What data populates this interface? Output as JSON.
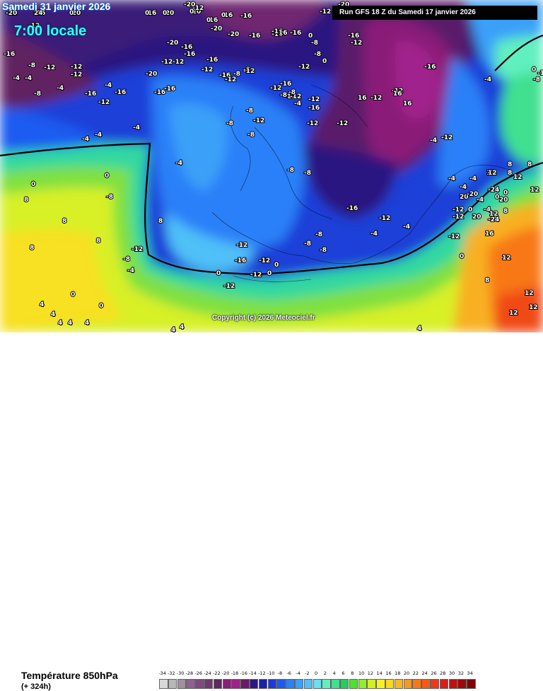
{
  "header": {
    "date": "Samedi 31 janvier 2026",
    "time": "7:00 locale",
    "run": "Run GFS 18 Z du Samedi 17 janvier 2026"
  },
  "footer": {
    "parameter": "Température 850hPa",
    "lead_time": "(+ 324h)",
    "copyright": "Copyright (c) 2026 Meteociel.fr"
  },
  "scale": {
    "labels": [
      "-34",
      "-32",
      "-30",
      "-28",
      "-26",
      "-24",
      "-22",
      "-20",
      "-18",
      "-16",
      "-14",
      "-12",
      "-10",
      "-8",
      "-6",
      "-4",
      "-2",
      "0",
      "2",
      "4",
      "6",
      "8",
      "10",
      "12",
      "14",
      "16",
      "18",
      "20",
      "22",
      "24",
      "26",
      "28",
      "30",
      "32",
      "34"
    ],
    "colors": [
      "#d8d8d8",
      "#b8b8b8",
      "#a090a0",
      "#906090",
      "#804880",
      "#703870",
      "#602860",
      "#8a1e78",
      "#a0208c",
      "#6a1a6a",
      "#2a1880",
      "#1a20b0",
      "#1a3ae0",
      "#1a5cf0",
      "#2a80f8",
      "#3aa0f8",
      "#50c0f8",
      "#6ae0f0",
      "#60f0c0",
      "#40e090",
      "#20d060",
      "#50e030",
      "#90f020",
      "#d0f020",
      "#f8f020",
      "#f8d820",
      "#f8b820",
      "#f89820",
      "#f87818",
      "#f85818",
      "#f03818",
      "#d82018",
      "#c01010",
      "#a00808",
      "#800000"
    ]
  },
  "map_labels": [
    {
      "t": "-12"
    },
    {
      "t": "-16"
    },
    {
      "t": "-20"
    },
    {
      "t": "-16"
    },
    {
      "t": "-20"
    },
    {
      "t": "-20"
    },
    {
      "t": "-16"
    },
    {
      "t": "-16"
    },
    {
      "t": "-20"
    },
    {
      "t": "-16"
    },
    {
      "t": "-16"
    },
    {
      "t": "-20"
    },
    {
      "t": "-16"
    },
    {
      "t": "-12"
    },
    {
      "t": "-16"
    },
    {
      "t": "-12"
    },
    {
      "t": "-20"
    },
    {
      "t": "-20"
    },
    {
      "t": "-12"
    },
    {
      "t": "-8"
    },
    {
      "t": "-12"
    },
    {
      "t": "-16"
    },
    {
      "t": "-8"
    },
    {
      "t": "-4"
    },
    {
      "t": "-4"
    },
    {
      "t": "-8"
    },
    {
      "t": "-4"
    },
    {
      "t": "-12"
    },
    {
      "t": "-12"
    },
    {
      "t": "-12"
    },
    {
      "t": "-16"
    },
    {
      "t": "-16"
    },
    {
      "t": "-4"
    },
    {
      "t": "-12"
    },
    {
      "t": "-16"
    },
    {
      "t": "-16"
    },
    {
      "t": "-20"
    },
    {
      "t": "-20"
    },
    {
      "t": "-16"
    },
    {
      "t": "-16"
    },
    {
      "t": "-12"
    },
    {
      "t": "-12"
    },
    {
      "t": "-16"
    },
    {
      "t": "-12"
    },
    {
      "t": "-16"
    },
    {
      "t": "-12"
    },
    {
      "t": "-8"
    },
    {
      "t": "-12"
    },
    {
      "t": "-16"
    },
    {
      "t": "-12"
    },
    {
      "t": "-12"
    },
    {
      "t": "-12"
    },
    {
      "t": "-16"
    },
    {
      "t": "-12"
    },
    {
      "t": "-12"
    },
    {
      "t": "-12"
    },
    {
      "t": "-12"
    },
    {
      "t": "-12"
    },
    {
      "t": "-12"
    },
    {
      "t": "-4"
    },
    {
      "t": "-4"
    },
    {
      "t": "-8"
    },
    {
      "t": "0"
    },
    {
      "t": "-16"
    },
    {
      "t": "-16"
    },
    {
      "t": "-12"
    },
    {
      "t": "-4"
    },
    {
      "t": "-4"
    },
    {
      "t": "-8"
    },
    {
      "t": "-8"
    },
    {
      "t": "-8"
    },
    {
      "t": "-8"
    },
    {
      "t": "-8"
    },
    {
      "t": "-4"
    },
    {
      "t": "-4"
    },
    {
      "t": "-4"
    },
    {
      "t": "-4"
    },
    {
      "t": "-8"
    },
    {
      "t": "-12"
    },
    {
      "t": "-8"
    },
    {
      "t": "-12"
    },
    {
      "t": "-8"
    },
    {
      "t": "-8"
    },
    {
      "t": "-4"
    },
    {
      "t": "-8"
    },
    {
      "t": "-8"
    },
    {
      "t": "-12"
    },
    {
      "t": "-8"
    },
    {
      "t": "0"
    },
    {
      "t": "-8"
    },
    {
      "t": "0"
    },
    {
      "t": "-16"
    },
    {
      "t": "-16"
    },
    {
      "t": "-12"
    },
    {
      "t": "-12"
    },
    {
      "t": "-12"
    },
    {
      "t": "-12"
    },
    {
      "t": "-12"
    },
    {
      "t": "-12"
    },
    {
      "t": "-16"
    },
    {
      "t": "-12"
    },
    {
      "t": "0"
    },
    {
      "t": "0"
    },
    {
      "t": "0"
    },
    {
      "t": "0"
    },
    {
      "t": "0"
    },
    {
      "t": "-8"
    },
    {
      "t": "-12"
    },
    {
      "t": "-8"
    },
    {
      "t": "-4"
    },
    {
      "t": "-4"
    },
    {
      "t": "-4"
    },
    {
      "t": "-4"
    },
    {
      "t": "-4"
    },
    {
      "t": "-4"
    },
    {
      "t": "0"
    },
    {
      "t": "0"
    },
    {
      "t": "0"
    },
    {
      "t": "0"
    },
    {
      "t": "0"
    },
    {
      "t": "0"
    },
    {
      "t": "4"
    },
    {
      "t": "4"
    },
    {
      "t": "4"
    },
    {
      "t": "4"
    },
    {
      "t": "4"
    },
    {
      "t": "4"
    },
    {
      "t": "4"
    },
    {
      "t": "4"
    },
    {
      "t": "8"
    },
    {
      "t": "8"
    },
    {
      "t": "8"
    },
    {
      "t": "8"
    },
    {
      "t": "8"
    },
    {
      "t": "8"
    },
    {
      "t": "8"
    },
    {
      "t": "8"
    },
    {
      "t": "8"
    },
    {
      "t": "8"
    },
    {
      "t": "12"
    },
    {
      "t": "12"
    },
    {
      "t": "12"
    },
    {
      "t": "12"
    },
    {
      "t": "12"
    },
    {
      "t": "12"
    },
    {
      "t": "12"
    },
    {
      "t": "12"
    },
    {
      "t": "12"
    },
    {
      "t": "16"
    },
    {
      "t": "16"
    },
    {
      "t": "16"
    },
    {
      "t": "16"
    },
    {
      "t": "16"
    },
    {
      "t": "16"
    },
    {
      "t": "20"
    },
    {
      "t": "20"
    },
    {
      "t": "20"
    },
    {
      "t": "-24"
    },
    {
      "t": "-24"
    },
    {
      "t": "-20"
    },
    {
      "t": "-20"
    },
    {
      "t": "24"
    },
    {
      "t": "0"
    },
    {
      "t": "0"
    },
    {
      "t": "0"
    },
    {
      "t": "0"
    },
    {
      "t": "0"
    },
    {
      "t": "0"
    }
  ]
}
